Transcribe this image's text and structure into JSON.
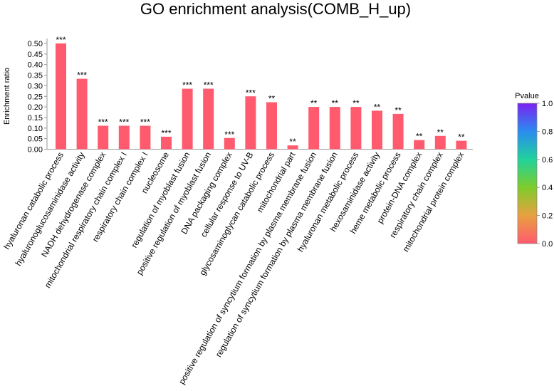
{
  "chart_data": {
    "type": "bar",
    "title": "GO enrichment analysis(COMB_H_up)",
    "ylabel": "Enrichment ratio",
    "ylim": [
      0,
      0.52
    ],
    "yticks": [
      "0.00",
      "0.05",
      "0.10",
      "0.15",
      "0.20",
      "0.25",
      "0.30",
      "0.35",
      "0.40",
      "0.45",
      "0.50"
    ],
    "bar_color": "#ff5a6e",
    "categories": [
      "hyaluronan catabolic process",
      "hyaluronoglucosaminidase activity",
      "NADH dehydrogenase complex",
      "mitochondrial respiratory chain complex I",
      "respiratory chain complex I",
      "nucleosome",
      "regulation of myoblast fusion",
      "positive regulation of myoblast fusion",
      "DNA packaging complex",
      "cellular response to UV-B",
      "glycosaminoglycan catabolic process",
      "mitochondrial part",
      "positive regulation of syncytium formation by plasma membrane fusion",
      "regulation of syncytium formation by plasma membrane fusion",
      "hyaluronan metabolic process",
      "hexosaminidase activity",
      "heme metabolic process",
      "protein-DNA complex",
      "respiratory chain complex",
      "mitochondrial protein complex"
    ],
    "values": [
      0.5,
      0.333,
      0.111,
      0.111,
      0.111,
      0.059,
      0.286,
      0.286,
      0.053,
      0.25,
      0.222,
      0.018,
      0.2,
      0.2,
      0.2,
      0.182,
      0.167,
      0.043,
      0.063,
      0.04
    ],
    "significance": [
      "***",
      "***",
      "***",
      "***",
      "***",
      "***",
      "***",
      "***",
      "***",
      "***",
      "**",
      "**",
      "**",
      "**",
      "**",
      "**",
      "**",
      "**",
      "**",
      "**"
    ],
    "legend": {
      "title": "Pvalue",
      "range": [
        0,
        1
      ],
      "ticks": [
        "0.0",
        "0.2",
        "0.4",
        "0.6",
        "0.8",
        "1.0"
      ],
      "colors": [
        "#ff5a6e",
        "#e8a040",
        "#7ecc2a",
        "#20d29c",
        "#2a8cf0",
        "#7a22f0"
      ],
      "placement": "right"
    }
  }
}
